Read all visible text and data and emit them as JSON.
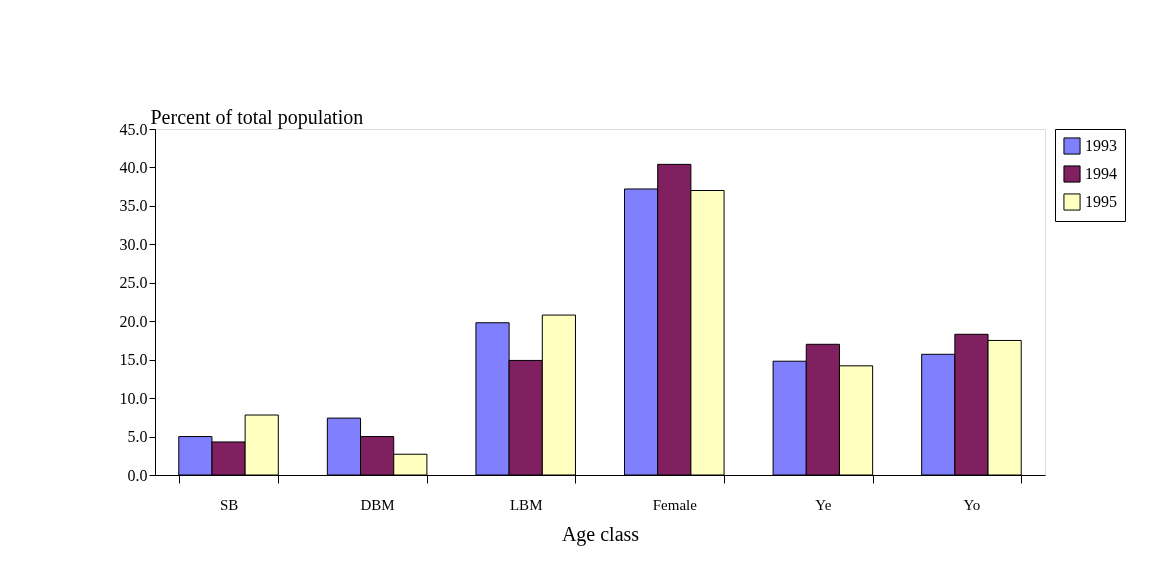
{
  "chart_data": {
    "type": "bar",
    "xlabel": "Age class",
    "ylabel": "Percent of total population",
    "categories": [
      "SB",
      "DBM",
      "LBM",
      "Female",
      "Ye",
      "Yo"
    ],
    "series": [
      {
        "name": "1993",
        "color": "#8080ff",
        "values": [
          5.0,
          7.4,
          19.8,
          37.2,
          14.8,
          15.7
        ]
      },
      {
        "name": "1994",
        "color": "#802060",
        "values": [
          4.3,
          5.0,
          14.9,
          40.4,
          17.0,
          18.3
        ]
      },
      {
        "name": "1995",
        "color": "#ffffc0",
        "values": [
          7.8,
          2.7,
          20.8,
          37.0,
          14.2,
          17.5
        ]
      }
    ],
    "ylim": [
      0,
      45
    ],
    "yticks": [
      {
        "value": 0,
        "label": "0.0"
      },
      {
        "value": 5,
        "label": "5.0"
      },
      {
        "value": 10,
        "label": "10.0"
      },
      {
        "value": 15,
        "label": "15.0"
      },
      {
        "value": 20,
        "label": "20.0"
      },
      {
        "value": 25,
        "label": "25.0"
      },
      {
        "value": 30,
        "label": "30.0"
      },
      {
        "value": 35,
        "label": "35.0"
      },
      {
        "value": 40,
        "label": "40.0"
      },
      {
        "value": 45,
        "label": "45.0"
      }
    ],
    "grid": false,
    "legend": "right"
  }
}
